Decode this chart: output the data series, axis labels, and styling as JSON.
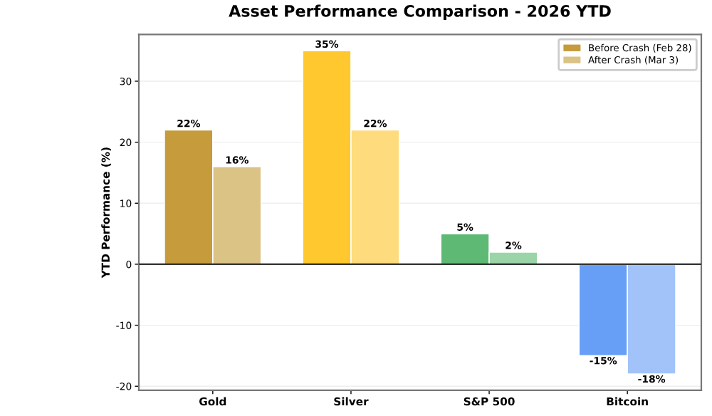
{
  "chart_data": {
    "type": "bar",
    "title": "Asset Performance Comparison - 2026 YTD",
    "ylabel": "YTD Performance (%)",
    "categories": [
      "Gold",
      "Silver",
      "S&P 500",
      "Bitcoin"
    ],
    "series": [
      {
        "name": "Before Crash (Feb 28)",
        "color": "#c59b3c",
        "colors": [
          "#c59b3c",
          "#fec82e",
          "#5db974",
          "#679ff7"
        ],
        "values": [
          22,
          35,
          5,
          -15
        ],
        "value_labels": [
          "22%",
          "35%",
          "5%",
          "-15%"
        ]
      },
      {
        "name": "After Crash (Mar 3)",
        "color": "#dbc285",
        "colors": [
          "#dbc285",
          "#fedb7c",
          "#9bd4a7",
          "#a2c3fa"
        ],
        "values": [
          16,
          22,
          2,
          -18
        ],
        "value_labels": [
          "16%",
          "22%",
          "2%",
          "-18%"
        ]
      }
    ],
    "ylim": [
      -20.65,
      37.65
    ],
    "yticks": [
      -20,
      -10,
      0,
      10,
      20,
      30
    ],
    "ref_lines": [
      {
        "axis": "y",
        "value": 0,
        "color": "#333333"
      }
    ],
    "grid": "y",
    "legend": "top right"
  }
}
